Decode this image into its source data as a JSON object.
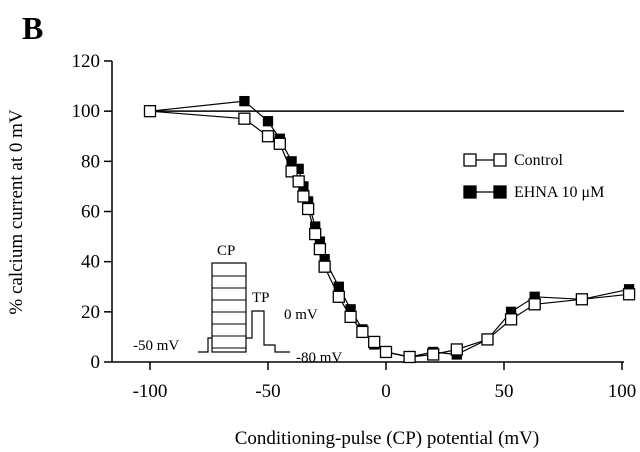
{
  "panel_label": "B",
  "chart_data": {
    "type": "line",
    "xlabel": "Conditioning-pulse (CP) potential (mV)",
    "ylabel": "% calcium current at 0 mV",
    "xlim": [
      -100,
      100
    ],
    "ylim": [
      0,
      120
    ],
    "x_ticks": [
      -100,
      -50,
      0,
      50,
      100
    ],
    "y_ticks": [
      0,
      20,
      40,
      60,
      80,
      100,
      120
    ],
    "reference_line_y": 100,
    "legend_position": "right",
    "series": [
      {
        "name": "Control",
        "marker": "open-square",
        "points": [
          {
            "x": -100,
            "y": 100
          },
          {
            "x": -60,
            "y": 97
          },
          {
            "x": -50,
            "y": 90
          },
          {
            "x": -45,
            "y": 87
          },
          {
            "x": -40,
            "y": 76
          },
          {
            "x": -37,
            "y": 72
          },
          {
            "x": -35,
            "y": 66
          },
          {
            "x": -33,
            "y": 61
          },
          {
            "x": -30,
            "y": 51
          },
          {
            "x": -28,
            "y": 45
          },
          {
            "x": -26,
            "y": 38
          },
          {
            "x": -20,
            "y": 26
          },
          {
            "x": -15,
            "y": 18
          },
          {
            "x": -10,
            "y": 12
          },
          {
            "x": -5,
            "y": 8
          },
          {
            "x": 0,
            "y": 4
          },
          {
            "x": 10,
            "y": 2
          },
          {
            "x": 20,
            "y": 3
          },
          {
            "x": 30,
            "y": 5
          },
          {
            "x": 43,
            "y": 9
          },
          {
            "x": 53,
            "y": 17
          },
          {
            "x": 63,
            "y": 23
          },
          {
            "x": 83,
            "y": 25
          },
          {
            "x": 103,
            "y": 27
          }
        ]
      },
      {
        "name": "EHNA 10 μM",
        "marker": "filled-square",
        "points": [
          {
            "x": -100,
            "y": 100
          },
          {
            "x": -60,
            "y": 104
          },
          {
            "x": -50,
            "y": 96
          },
          {
            "x": -45,
            "y": 89
          },
          {
            "x": -40,
            "y": 80
          },
          {
            "x": -37,
            "y": 77
          },
          {
            "x": -35,
            "y": 70
          },
          {
            "x": -33,
            "y": 64
          },
          {
            "x": -30,
            "y": 54
          },
          {
            "x": -28,
            "y": 48
          },
          {
            "x": -26,
            "y": 41
          },
          {
            "x": -20,
            "y": 30
          },
          {
            "x": -15,
            "y": 21
          },
          {
            "x": -10,
            "y": 13
          },
          {
            "x": -5,
            "y": 7
          },
          {
            "x": 0,
            "y": 4
          },
          {
            "x": 10,
            "y": 2
          },
          {
            "x": 20,
            "y": 4
          },
          {
            "x": 30,
            "y": 3
          },
          {
            "x": 43,
            "y": 9
          },
          {
            "x": 53,
            "y": 20
          },
          {
            "x": 63,
            "y": 26
          },
          {
            "x": 83,
            "y": 25
          },
          {
            "x": 103,
            "y": 29
          }
        ]
      }
    ],
    "inset_protocol": {
      "labels": {
        "cp": "CP",
        "tp": "TP",
        "holding": "-50 mV",
        "test": "0 mV",
        "return": "-80 mV"
      }
    }
  }
}
